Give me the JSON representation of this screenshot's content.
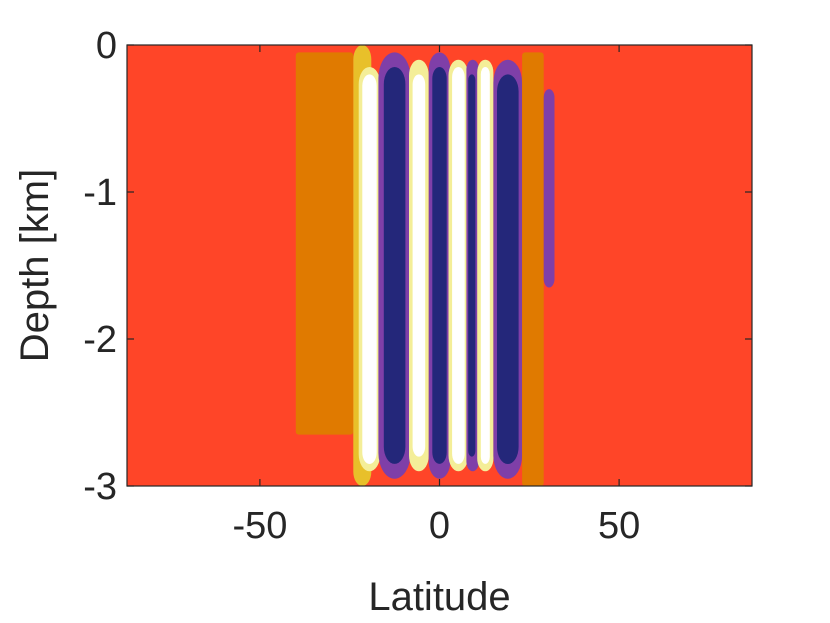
{
  "chart_data": {
    "type": "heatmap",
    "title": "",
    "xlabel": "Latitude",
    "ylabel": "Depth [km]",
    "xlim": [
      -87,
      87
    ],
    "ylim": [
      -3,
      0
    ],
    "x_ticks": [
      -50,
      0,
      50
    ],
    "y_ticks": [
      0,
      -1,
      -2,
      -3
    ],
    "x_tick_labels": [
      "-50",
      "0",
      "50"
    ],
    "y_tick_labels": [
      "0",
      "-1",
      "-2",
      "-3"
    ],
    "grid": false,
    "legend": "none",
    "colors": {
      "background_level": "#ff4528",
      "orange_level": "#e07a00",
      "yellow_level": "#e8c02a",
      "pale_level": "#f4ee98",
      "white_level": "#ffffff",
      "purple_level": "#7f3fa8",
      "indigo_level": "#3a3a9a",
      "navy_level": "#24277a",
      "axis": "#262626"
    },
    "bands": [
      {
        "level": "orange_level",
        "lat_min": -40,
        "lat_max": -24,
        "depth_top": -0.05,
        "depth_bottom": -2.65
      },
      {
        "level": "yellow_level",
        "lat_min": -24,
        "lat_max": -19,
        "depth_top": 0,
        "depth_bottom": -3
      },
      {
        "level": "pale_level",
        "lat_min": -22.5,
        "lat_max": -16.5,
        "depth_top": -0.15,
        "depth_bottom": -2.9
      },
      {
        "level": "white_level",
        "lat_min": -21.5,
        "lat_max": -17.5,
        "depth_top": -0.2,
        "depth_bottom": -2.85
      },
      {
        "level": "purple_level",
        "lat_min": -17,
        "lat_max": -8,
        "depth_top": -0.05,
        "depth_bottom": -2.95
      },
      {
        "level": "navy_level",
        "lat_min": -15.5,
        "lat_max": -9.5,
        "depth_top": -0.15,
        "depth_bottom": -2.85
      },
      {
        "level": "pale_level",
        "lat_min": -8.5,
        "lat_max": -3,
        "depth_top": -0.1,
        "depth_bottom": -2.9
      },
      {
        "level": "white_level",
        "lat_min": -7.5,
        "lat_max": -4,
        "depth_top": -0.2,
        "depth_bottom": -2.8
      },
      {
        "level": "purple_level",
        "lat_min": -3,
        "lat_max": 3,
        "depth_top": -0.05,
        "depth_bottom": -2.95
      },
      {
        "level": "navy_level",
        "lat_min": -2,
        "lat_max": 2,
        "depth_top": -0.15,
        "depth_bottom": -2.85
      },
      {
        "level": "pale_level",
        "lat_min": 2.5,
        "lat_max": 8,
        "depth_top": -0.1,
        "depth_bottom": -2.9
      },
      {
        "level": "white_level",
        "lat_min": 3.5,
        "lat_max": 7,
        "depth_top": -0.15,
        "depth_bottom": -2.85
      },
      {
        "level": "purple_level",
        "lat_min": 7.5,
        "lat_max": 11,
        "depth_top": -0.1,
        "depth_bottom": -2.9
      },
      {
        "level": "navy_level",
        "lat_min": 8,
        "lat_max": 10,
        "depth_top": -0.2,
        "depth_bottom": -2.8
      },
      {
        "level": "pale_level",
        "lat_min": 10.5,
        "lat_max": 15,
        "depth_top": -0.1,
        "depth_bottom": -2.9
      },
      {
        "level": "white_level",
        "lat_min": 11.5,
        "lat_max": 14,
        "depth_top": -0.15,
        "depth_bottom": -2.85
      },
      {
        "level": "purple_level",
        "lat_min": 15,
        "lat_max": 23,
        "depth_top": -0.1,
        "depth_bottom": -2.95
      },
      {
        "level": "navy_level",
        "lat_min": 16,
        "lat_max": 22,
        "depth_top": -0.2,
        "depth_bottom": -2.85
      },
      {
        "level": "orange_level",
        "lat_min": 23,
        "lat_max": 29,
        "depth_top": -0.05,
        "depth_bottom": -3
      },
      {
        "level": "purple_level",
        "lat_min": 29,
        "lat_max": 32,
        "depth_top": -0.3,
        "depth_bottom": -1.65
      }
    ]
  }
}
